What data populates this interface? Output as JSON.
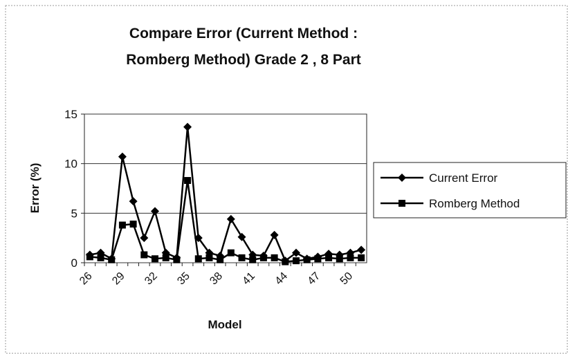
{
  "chart_data": {
    "type": "line",
    "title_lines": [
      "Compare Error (Current Method :",
      "Romberg Method) Grade 2 , 8 Part"
    ],
    "x_label": "Model",
    "y_label": "Error (%)",
    "categories": [
      "26",
      null,
      null,
      "29",
      null,
      null,
      "32",
      null,
      null,
      "35",
      null,
      null,
      "38",
      null,
      null,
      "41",
      null,
      null,
      "44",
      null,
      null,
      "47",
      null,
      null,
      "50",
      null
    ],
    "series": [
      {
        "name": "Current Error",
        "color": "#000000",
        "marker": "diamond",
        "values": [
          0.8,
          1.0,
          0.4,
          10.7,
          6.2,
          2.5,
          5.2,
          1.0,
          0.5,
          13.7,
          2.5,
          1.0,
          0.7,
          4.4,
          2.6,
          0.8,
          0.7,
          2.8,
          0.2,
          1.0,
          0.4,
          0.6,
          0.9,
          0.8,
          1.0,
          1.3
        ]
      },
      {
        "name": "Romberg Method",
        "color": "#000000",
        "marker": "square",
        "values": [
          0.6,
          0.5,
          0.3,
          3.8,
          3.9,
          0.8,
          0.4,
          0.5,
          0.3,
          8.3,
          0.4,
          0.5,
          0.3,
          1.0,
          0.5,
          0.3,
          0.5,
          0.5,
          0.1,
          0.2,
          0.3,
          0.4,
          0.5,
          0.4,
          0.5,
          0.5
        ]
      }
    ],
    "ylim": [
      0,
      15
    ],
    "yticks": [
      0,
      5,
      10,
      15
    ],
    "grid": true,
    "legend": "right"
  }
}
